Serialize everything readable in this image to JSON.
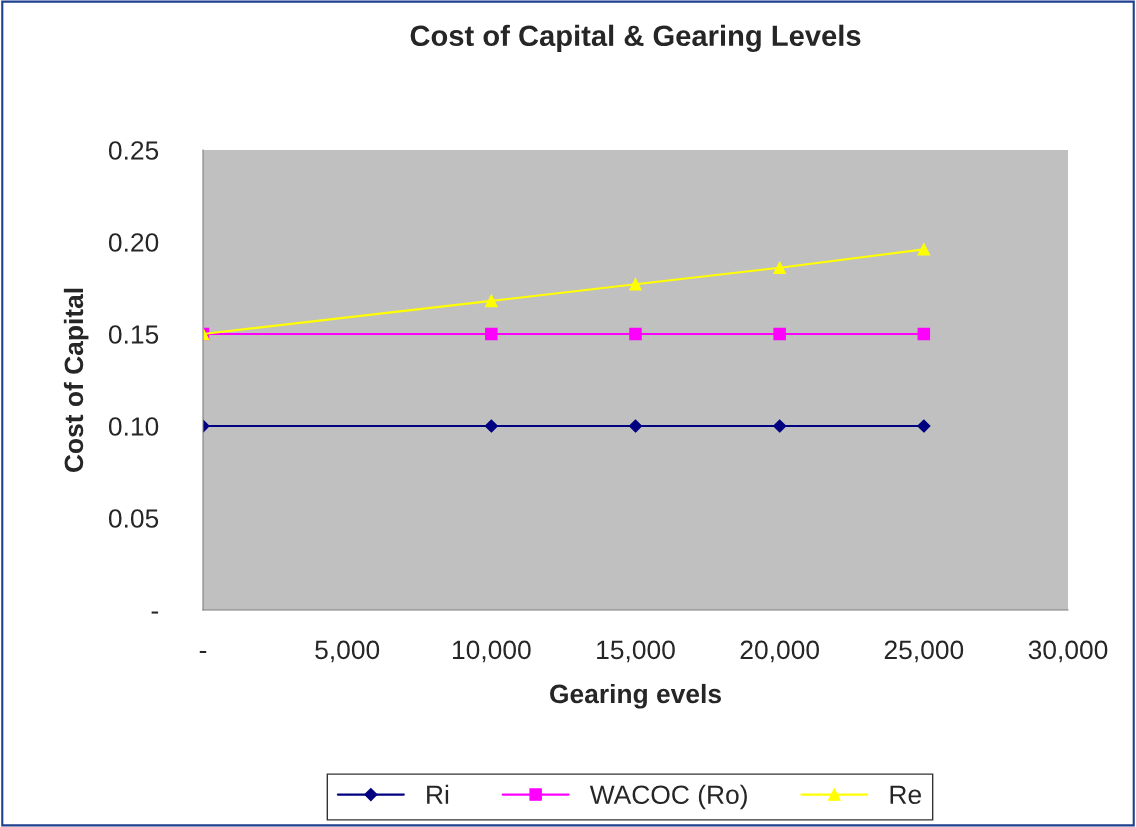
{
  "chart_data": {
    "type": "line",
    "title": "Cost of Capital & Gearing Levels",
    "xlabel": "Gearing evels",
    "ylabel": "Cost of Capital",
    "x": [
      0,
      10000,
      15000,
      20000,
      25000
    ],
    "series": [
      {
        "name": "Ri",
        "color": "#000080",
        "marker": "diamond",
        "values": [
          0.1,
          0.1,
          0.1,
          0.1,
          0.1
        ]
      },
      {
        "name": "WACOC (Ro)",
        "color": "#ff00ff",
        "marker": "square",
        "values": [
          0.15,
          0.15,
          0.15,
          0.15,
          0.15
        ]
      },
      {
        "name": "Re",
        "color": "#ffff00",
        "marker": "triangle",
        "values": [
          0.15,
          0.168,
          0.177,
          0.186,
          0.196
        ]
      }
    ],
    "xlim": [
      0,
      30000
    ],
    "xticks": [
      {
        "value": 0,
        "label": "-"
      },
      {
        "value": 5000,
        "label": "5,000"
      },
      {
        "value": 10000,
        "label": "10,000"
      },
      {
        "value": 15000,
        "label": "15,000"
      },
      {
        "value": 20000,
        "label": "20,000"
      },
      {
        "value": 25000,
        "label": "25,000"
      },
      {
        "value": 30000,
        "label": "30,000"
      }
    ],
    "ylim": [
      0,
      0.25
    ],
    "yticks": [
      {
        "value": 0,
        "label": "-"
      },
      {
        "value": 0.05,
        "label": "0.05"
      },
      {
        "value": 0.1,
        "label": "0.10"
      },
      {
        "value": 0.15,
        "label": "0.15"
      },
      {
        "value": 0.2,
        "label": "0.20"
      },
      {
        "value": 0.25,
        "label": "0.25"
      }
    ],
    "grid": false,
    "legend": "bottom"
  }
}
